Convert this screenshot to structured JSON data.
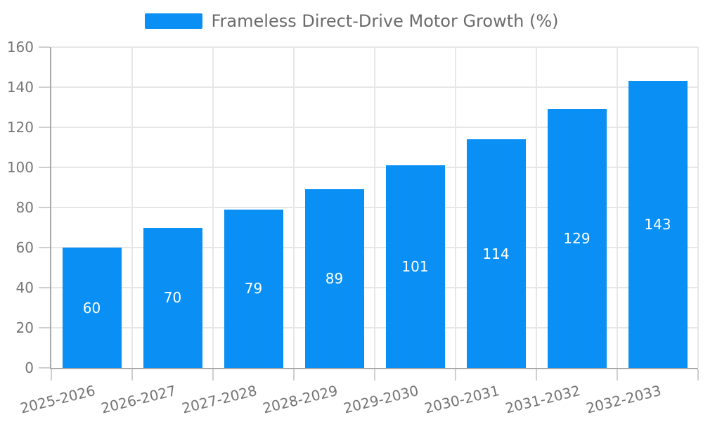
{
  "chart_data": {
    "type": "bar",
    "series_name": "Frameless Direct-Drive Motor Growth (%)",
    "categories": [
      "2025-2026",
      "2026-2027",
      "2027-2028",
      "2028-2029",
      "2029-2030",
      "2030-2031",
      "2031-2032",
      "2032-2033"
    ],
    "values": [
      60,
      70,
      79,
      89,
      101,
      114,
      129,
      143
    ],
    "title": "",
    "xlabel": "",
    "ylabel": "",
    "ylim": [
      0,
      160
    ],
    "yticks": [
      0,
      20,
      40,
      60,
      80,
      100,
      120,
      140,
      160
    ],
    "grid": true,
    "legend_position": "top-center",
    "value_labels": "inside-center",
    "x_label_rotation_deg": -14,
    "colors": {
      "bar": "#0A90F5",
      "value_label": "#FFFFFF",
      "grid_line": "#E7E7E7",
      "axis_line": "#A9A9A9",
      "tick_line": "#CFCFCF",
      "axis_text": "#757575",
      "legend_text": "#6B6B6B",
      "background": "#FFFFFF"
    }
  }
}
